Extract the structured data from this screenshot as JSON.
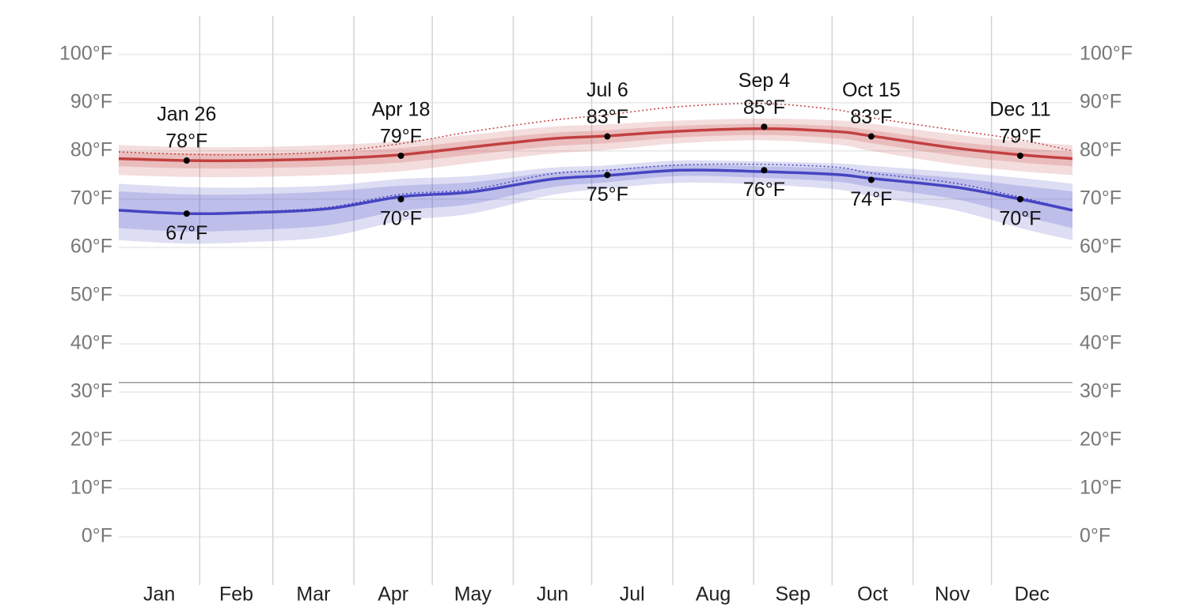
{
  "chart_data": {
    "type": "band-line",
    "xlim": [
      0,
      365
    ],
    "xticks": [
      31,
      59,
      90,
      120,
      151,
      181,
      212,
      243,
      273,
      304,
      334
    ],
    "categories": [
      "Jan",
      "Feb",
      "Mar",
      "Apr",
      "May",
      "Jun",
      "Jul",
      "Aug",
      "Sep",
      "Oct",
      "Nov",
      "Dec"
    ],
    "ylim": [
      -10,
      108
    ],
    "yticks": [
      {
        "value": 0,
        "label": "0°F"
      },
      {
        "value": 10,
        "label": "10°F"
      },
      {
        "value": 20,
        "label": "20°F"
      },
      {
        "value": 30,
        "label": "30°F"
      },
      {
        "value": 40,
        "label": "40°F"
      },
      {
        "value": 50,
        "label": "50°F"
      },
      {
        "value": 60,
        "label": "60°F"
      },
      {
        "value": 70,
        "label": "70°F"
      },
      {
        "value": 80,
        "label": "80°F"
      },
      {
        "value": 90,
        "label": "90°F"
      },
      {
        "value": 100,
        "label": "100°F"
      }
    ],
    "grid": true,
    "freezing": 32,
    "x": [
      0,
      26,
      50,
      80,
      108,
      135,
      165,
      187,
      215,
      247,
      275,
      288,
      320,
      345,
      365
    ],
    "series": [
      {
        "color": "#c24040",
        "values": [
          78.4,
          78.0,
          78.0,
          78.4,
          79.2,
          80.8,
          82.5,
          83.1,
          84.1,
          84.6,
          84.0,
          83.1,
          80.6,
          79.2,
          78.4
        ],
        "p90": [
          81.2,
          80.8,
          80.8,
          81.2,
          82.0,
          83.4,
          85.0,
          85.5,
          86.3,
          86.7,
          86.3,
          85.6,
          83.4,
          82.0,
          81.2
        ],
        "p75": [
          79.8,
          79.5,
          79.5,
          79.8,
          80.6,
          82.1,
          83.7,
          84.3,
          85.2,
          85.6,
          85.1,
          84.3,
          81.9,
          80.6,
          79.8
        ],
        "p25": [
          76.8,
          76.4,
          76.4,
          76.8,
          77.6,
          79.2,
          80.9,
          81.6,
          82.8,
          83.3,
          82.6,
          81.6,
          79.0,
          77.6,
          76.8
        ],
        "p10": [
          75.0,
          74.6,
          74.6,
          75.0,
          75.8,
          77.5,
          79.4,
          80.2,
          81.6,
          82.2,
          81.3,
          80.0,
          77.2,
          75.8,
          75.0
        ],
        "dotted": [
          79.8,
          79.3,
          79.2,
          79.8,
          81.5,
          84.0,
          86.3,
          87.5,
          89.2,
          89.8,
          88.5,
          86.9,
          84.3,
          82.3,
          80.0
        ],
        "annotations": [
          {
            "date": "Jan 26",
            "x": 26,
            "value": 78,
            "label": "78°F"
          },
          {
            "date": "Apr 18",
            "x": 108,
            "value": 79,
            "label": "79°F"
          },
          {
            "date": "Jul 6",
            "x": 187,
            "value": 83,
            "label": "83°F"
          },
          {
            "date": "Sep 4",
            "x": 247,
            "value": 85,
            "label": "85°F"
          },
          {
            "date": "Oct 15",
            "x": 288,
            "value": 83,
            "label": "83°F"
          },
          {
            "date": "Dec 11",
            "x": 345,
            "value": 79,
            "label": "79°F"
          }
        ]
      },
      {
        "color": "#4545c2",
        "values": [
          67.7,
          67.0,
          67.2,
          68.0,
          70.5,
          71.5,
          74.1,
          74.9,
          76.0,
          75.7,
          75.1,
          74.3,
          72.5,
          70.0,
          67.7
        ],
        "p90": [
          73.2,
          72.5,
          72.4,
          72.8,
          74.2,
          74.8,
          76.5,
          77.0,
          78.0,
          77.8,
          77.4,
          76.9,
          75.6,
          74.4,
          73.2
        ],
        "p75": [
          71.6,
          71.0,
          71.0,
          71.6,
          72.8,
          73.5,
          75.5,
          76.1,
          77.1,
          76.8,
          76.4,
          75.8,
          74.4,
          72.8,
          71.6
        ],
        "p25": [
          64.0,
          63.3,
          63.6,
          64.6,
          67.6,
          69.0,
          72.4,
          73.5,
          74.8,
          74.4,
          73.6,
          72.5,
          70.0,
          66.6,
          64.0
        ],
        "p10": [
          61.5,
          60.8,
          61.1,
          62.2,
          65.5,
          67.0,
          70.8,
          72.2,
          73.4,
          73.0,
          72.0,
          70.6,
          67.7,
          64.0,
          61.5
        ],
        "dotted": [
          67.8,
          67.1,
          67.4,
          68.3,
          71.0,
          72.0,
          75.2,
          76.0,
          77.1,
          77.2,
          76.6,
          75.4,
          73.3,
          70.4,
          67.8
        ],
        "annotations": [
          {
            "x": 26,
            "value": 67,
            "label": "67°F"
          },
          {
            "x": 108,
            "value": 70,
            "label": "70°F"
          },
          {
            "x": 187,
            "value": 75,
            "label": "75°F"
          },
          {
            "x": 247,
            "value": 76,
            "label": "76°F"
          },
          {
            "x": 288,
            "value": 74,
            "label": "74°F"
          },
          {
            "x": 345,
            "value": 70,
            "label": "70°F"
          }
        ]
      }
    ]
  }
}
